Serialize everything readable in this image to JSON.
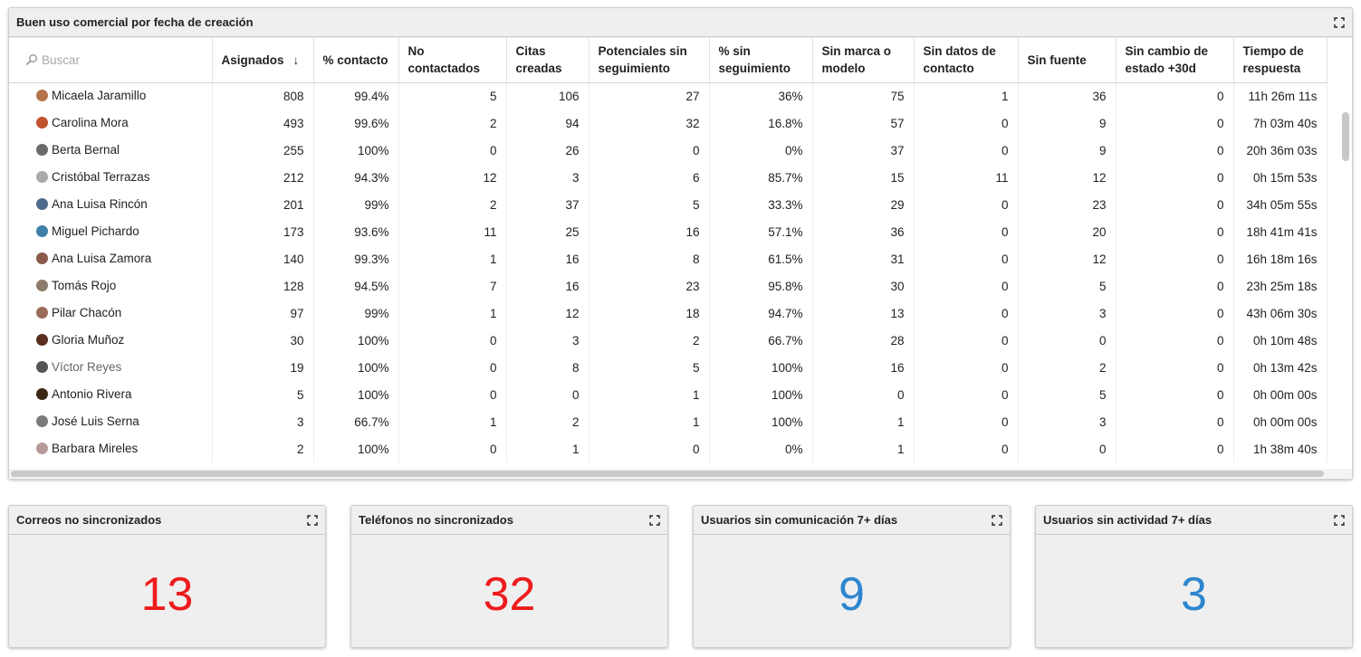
{
  "main": {
    "title": "Buen uso comercial por fecha de creación",
    "search_placeholder": "Buscar",
    "columns": [
      {
        "label": "Asignados",
        "sort": "↓"
      },
      {
        "label": "% contacto"
      },
      {
        "label": "No contactados"
      },
      {
        "label": "Citas creadas"
      },
      {
        "label": "Potenciales sin seguimiento"
      },
      {
        "label": "% sin seguimiento"
      },
      {
        "label": "Sin marca o modelo"
      },
      {
        "label": "Sin datos de contacto"
      },
      {
        "label": "Sin fuente"
      },
      {
        "label": "Sin cambio de estado +30d"
      },
      {
        "label": "Tiempo de respuesta"
      }
    ],
    "rows": [
      {
        "name": "Micaela Jaramillo",
        "avatar": "#b4734a",
        "values": [
          "808",
          "99.4%",
          "5",
          "106",
          "27",
          "36%",
          "75",
          "1",
          "36",
          "0",
          "11h 26m 11s"
        ]
      },
      {
        "name": "Carolina Mora",
        "avatar": "#c0532e",
        "values": [
          "493",
          "99.6%",
          "2",
          "94",
          "32",
          "16.8%",
          "57",
          "0",
          "9",
          "0",
          "7h 03m 40s"
        ]
      },
      {
        "name": "Berta Bernal",
        "avatar": "#6b6b6b",
        "values": [
          "255",
          "100%",
          "0",
          "26",
          "0",
          "0%",
          "37",
          "0",
          "9",
          "0",
          "20h 36m 03s"
        ]
      },
      {
        "name": "Cristóbal Terrazas",
        "avatar": "#a9a9a9",
        "values": [
          "212",
          "94.3%",
          "12",
          "3",
          "6",
          "85.7%",
          "15",
          "11",
          "12",
          "0",
          "0h 15m 53s"
        ]
      },
      {
        "name": "Ana Luisa Rincón",
        "avatar": "#4d6b8a",
        "values": [
          "201",
          "99%",
          "2",
          "37",
          "5",
          "33.3%",
          "29",
          "0",
          "23",
          "0",
          "34h 05m 55s"
        ]
      },
      {
        "name": "Miguel Pichardo",
        "avatar": "#3e7fa8",
        "values": [
          "173",
          "93.6%",
          "11",
          "25",
          "16",
          "57.1%",
          "36",
          "0",
          "20",
          "0",
          "18h 41m 41s"
        ]
      },
      {
        "name": "Ana Luisa Zamora",
        "avatar": "#8a5a4a",
        "values": [
          "140",
          "99.3%",
          "1",
          "16",
          "8",
          "61.5%",
          "31",
          "0",
          "12",
          "0",
          "16h 18m 16s"
        ]
      },
      {
        "name": "Tomás Rojo",
        "avatar": "#8c7a6b",
        "values": [
          "128",
          "94.5%",
          "7",
          "16",
          "23",
          "95.8%",
          "30",
          "0",
          "5",
          "0",
          "23h 25m 18s"
        ]
      },
      {
        "name": "Pilar Chacón",
        "avatar": "#9c6a58",
        "values": [
          "97",
          "99%",
          "1",
          "12",
          "18",
          "94.7%",
          "13",
          "0",
          "3",
          "0",
          "43h 06m 30s"
        ]
      },
      {
        "name": "Gloria Muñoz",
        "avatar": "#5a2e1e",
        "values": [
          "30",
          "100%",
          "0",
          "3",
          "2",
          "66.7%",
          "28",
          "0",
          "0",
          "0",
          "0h 10m 48s"
        ]
      },
      {
        "name": "Víctor Reyes",
        "avatar": "#555555",
        "muted": true,
        "values": [
          "19",
          "100%",
          "0",
          "8",
          "5",
          "100%",
          "16",
          "0",
          "2",
          "0",
          "0h 13m 42s"
        ]
      },
      {
        "name": "Antonio Rivera",
        "avatar": "#3a2a14",
        "values": [
          "5",
          "100%",
          "0",
          "0",
          "1",
          "100%",
          "0",
          "0",
          "5",
          "0",
          "0h 00m 00s"
        ]
      },
      {
        "name": "José Luis Serna",
        "avatar": "#7a7a7a",
        "values": [
          "3",
          "66.7%",
          "1",
          "2",
          "1",
          "100%",
          "1",
          "0",
          "3",
          "0",
          "0h 00m 00s"
        ]
      },
      {
        "name": "Barbara Mireles",
        "avatar": "#b99a9a",
        "values": [
          "2",
          "100%",
          "0",
          "1",
          "0",
          "0%",
          "1",
          "0",
          "0",
          "0",
          "1h 38m 40s"
        ]
      }
    ]
  },
  "stats": [
    {
      "title": "Correos no sincronizados",
      "value": "13",
      "color": "#ee1c1c"
    },
    {
      "title": "Teléfonos no sincronizados",
      "value": "32",
      "color": "#ee1c1c"
    },
    {
      "title": "Usuarios sin comunicación 7+ días",
      "value": "9",
      "color": "#2c86cf"
    },
    {
      "title": "Usuarios sin actividad 7+ días",
      "value": "3",
      "color": "#2c86cf"
    }
  ]
}
